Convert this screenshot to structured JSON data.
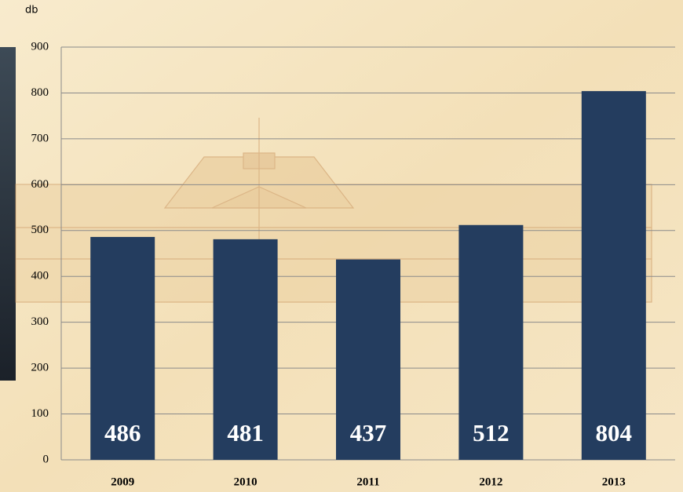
{
  "chart_data": {
    "type": "bar",
    "y_label": "db",
    "categories": [
      "2009",
      "2010",
      "2011",
      "2012",
      "2013"
    ],
    "values": [
      486,
      481,
      437,
      512,
      804
    ],
    "color": "#243d5f",
    "ylim": [
      0,
      900
    ],
    "yticks": [
      0,
      100,
      200,
      300,
      400,
      500,
      600,
      700,
      800,
      900
    ],
    "grid": true
  }
}
